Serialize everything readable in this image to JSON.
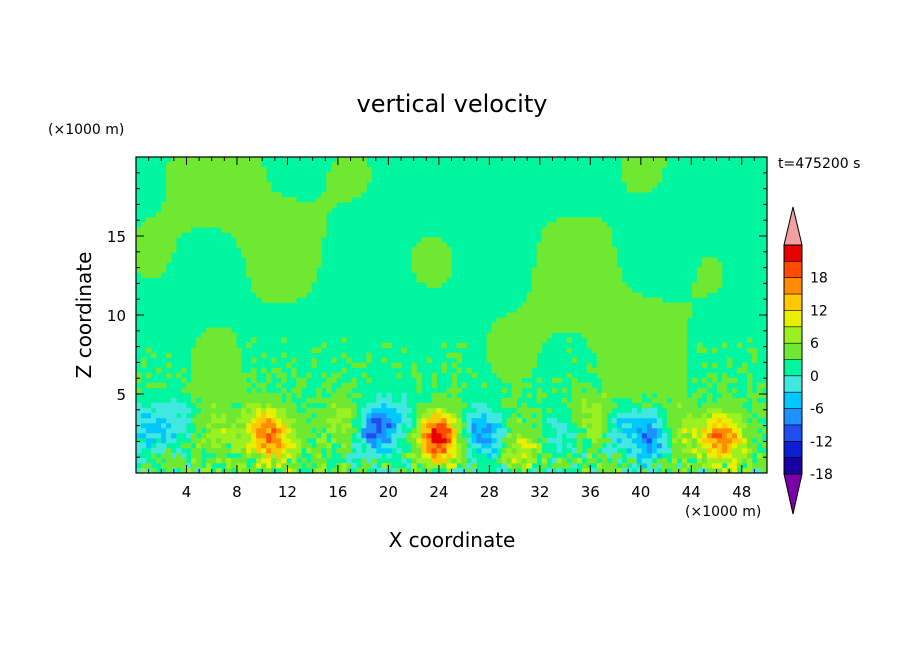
{
  "chart_data": {
    "type": "heatmap",
    "title": "vertical velocity",
    "xlabel": "X coordinate",
    "ylabel": "Z coordinate",
    "x_unit": "(×1000 m)",
    "y_unit": "(×1000 m)",
    "time_label": "t=475200 s",
    "xlim": [
      0,
      50
    ],
    "ylim": [
      0,
      20
    ],
    "x_ticks": [
      4,
      8,
      12,
      16,
      20,
      24,
      28,
      32,
      36,
      40,
      44,
      48
    ],
    "y_ticks": [
      5,
      10,
      15
    ],
    "colorbar": {
      "ticks": [
        18,
        12,
        6,
        0,
        -6,
        -12,
        -18
      ],
      "levels": [
        -21,
        -18,
        -15,
        -12,
        -9,
        -6,
        -3,
        0,
        3,
        6,
        9,
        12,
        15,
        18,
        21
      ],
      "colors": [
        "#7a00a8",
        "#1a00a0",
        "#0a1fd0",
        "#1f4df0",
        "#1e90ff",
        "#00c8ff",
        "#40e8e0",
        "#00f5a0",
        "#6ee830",
        "#9af020",
        "#e8f000",
        "#ffc800",
        "#ff8c00",
        "#ff4a00",
        "#e80000",
        "#f2a0a0"
      ],
      "extend": "both"
    },
    "features": [
      {
        "x": 24.0,
        "z": 2.3,
        "w": 20
      },
      {
        "x": 46.5,
        "z": 2.2,
        "w": 15
      },
      {
        "x": 11.0,
        "z": 2.0,
        "w": 9
      },
      {
        "x": 10.0,
        "z": 3.0,
        "w": 8
      },
      {
        "x": 16.5,
        "z": 3.2,
        "w": 5
      },
      {
        "x": 30.5,
        "z": 1.8,
        "w": 6
      },
      {
        "x": 36.0,
        "z": 3.6,
        "w": 5
      },
      {
        "x": 43.0,
        "z": 2.4,
        "w": 6
      },
      {
        "x": 6.5,
        "z": 2.5,
        "w": 4
      },
      {
        "x": 19.0,
        "z": 2.8,
        "w": -13
      },
      {
        "x": 27.5,
        "z": 2.5,
        "w": -11
      },
      {
        "x": 41.0,
        "z": 2.2,
        "w": -11
      },
      {
        "x": 0.8,
        "z": 2.8,
        "w": -6
      },
      {
        "x": 3.0,
        "z": 3.0,
        "w": -5
      },
      {
        "x": 34.0,
        "z": 2.5,
        "w": -5
      },
      {
        "x": 21.0,
        "z": 3.5,
        "w": -4
      },
      {
        "x": 38.5,
        "z": 3.0,
        "w": -5
      }
    ]
  }
}
